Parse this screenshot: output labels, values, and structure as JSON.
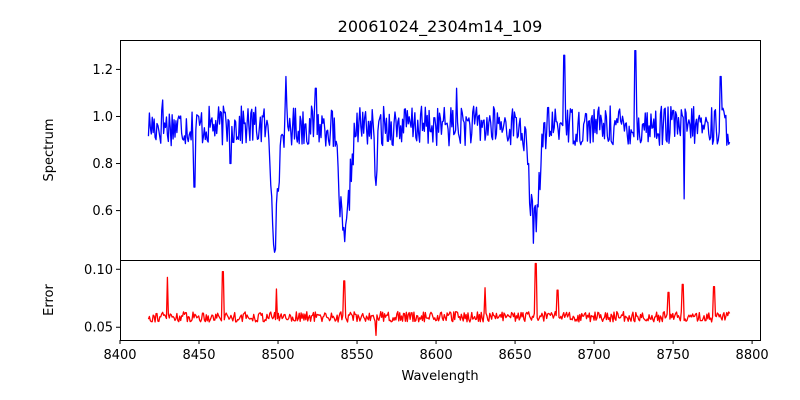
{
  "chart_data": [
    {
      "type": "line",
      "panel": "spectrum",
      "title": "20061024_2304m14_109",
      "xlabel": "",
      "ylabel": "Spectrum",
      "xlim": [
        8400,
        8805
      ],
      "ylim": [
        0.39,
        1.325
      ],
      "yticks": [
        0.6,
        0.8,
        1.0,
        1.2
      ],
      "ytick_labels": [
        "0.6",
        "0.8",
        "1.0",
        "1.2"
      ],
      "grid": false,
      "color": "#0000ff",
      "series": [
        {
          "x_start": 8418,
          "x_end": 8786,
          "baseline": 0.96,
          "noise": 0.085,
          "spikes": [
            [
              8427,
              1.07
            ],
            [
              8447,
              0.7
            ],
            [
              8470,
              0.8
            ],
            [
              8505,
              1.17
            ],
            [
              8524,
              1.12
            ],
            [
              8613,
              1.12
            ],
            [
              8681,
              1.26
            ],
            [
              8726,
              1.28
            ],
            [
              8757,
              0.65
            ],
            [
              8780,
              1.17
            ]
          ],
          "lines": [
            {
              "center": 8498,
              "depth": 0.46,
              "width": 2.0
            },
            {
              "center": 8542,
              "depth": 0.5,
              "width": 3.0
            },
            {
              "center": 8562,
              "depth": 0.2,
              "width": 1.0
            },
            {
              "center": 8662,
              "depth": 0.42,
              "width": 3.0
            }
          ]
        }
      ]
    },
    {
      "type": "line",
      "panel": "error",
      "title": "",
      "xlabel": "Wavelength",
      "ylabel": "Error",
      "xlim": [
        8400,
        8805
      ],
      "ylim": [
        0.039,
        0.108
      ],
      "xticks": [
        8400,
        8450,
        8500,
        8550,
        8600,
        8650,
        8700,
        8750,
        8800
      ],
      "xtick_labels": [
        "8400",
        "8450",
        "8500",
        "8550",
        "8600",
        "8650",
        "8700",
        "8750",
        "8800"
      ],
      "yticks": [
        0.05,
        0.1
      ],
      "ytick_labels": [
        "0.05",
        "0.10"
      ],
      "grid": false,
      "color": "#ff0000",
      "series": [
        {
          "x_start": 8418,
          "x_end": 8786,
          "baseline": 0.059,
          "noise": 0.0045,
          "spikes": [
            [
              8430,
              0.093
            ],
            [
              8465,
              0.098
            ],
            [
              8499,
              0.083
            ],
            [
              8542,
              0.09
            ],
            [
              8562,
              0.043
            ],
            [
              8631,
              0.084
            ],
            [
              8663,
              0.105
            ],
            [
              8677,
              0.082
            ],
            [
              8747,
              0.08
            ],
            [
              8756,
              0.087
            ],
            [
              8776,
              0.085
            ]
          ],
          "lines": []
        }
      ]
    }
  ]
}
